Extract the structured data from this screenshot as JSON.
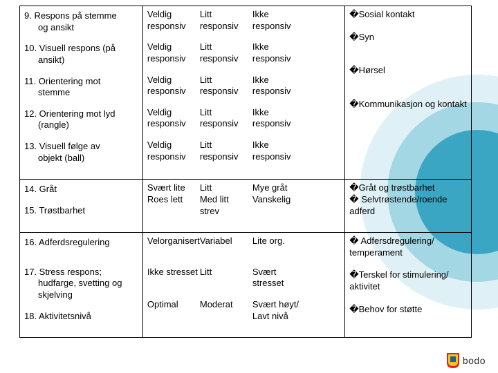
{
  "rows": [
    {
      "leftItems": [
        {
          "num": " 9.",
          "txt": "Respons på stemme",
          "indent": "og  ansikt"
        },
        {
          "num": "10.",
          "txt": "Visuell respons (på",
          "indent": " ansikt)"
        },
        {
          "num": "11.",
          "txt": "Orientering mot",
          "indent": "stemme"
        },
        {
          "num": "12.",
          "txt": "Orientering mot lyd",
          "indent": "(rangle)"
        },
        {
          "num": "13.",
          "txt": "Visuell følge av",
          "indent": "objekt (ball)"
        }
      ],
      "midGroups": [
        [
          [
            "Veldig",
            "Litt",
            "Ikke"
          ],
          [
            "responsiv",
            "responsiv",
            "responsiv"
          ]
        ],
        [
          [
            "Veldig",
            "Litt",
            "Ikke"
          ],
          [
            "responsiv",
            "responsiv",
            "responsiv"
          ]
        ],
        [
          [
            "Veldig",
            "Litt",
            "Ikke"
          ],
          [
            "responsiv",
            "responsiv",
            "responsiv"
          ]
        ],
        [
          [
            "Veldig",
            "Litt",
            "Ikke"
          ],
          [
            "responsiv",
            "responsiv",
            "responsiv"
          ]
        ],
        [
          [
            "Veldig",
            "Litt",
            "Ikke"
          ],
          [
            "responsiv",
            "responsiv",
            "responsiv"
          ]
        ]
      ],
      "rightItems": [
        {
          "pre": "�",
          "txt": "Sosial kontakt",
          "after": 1
        },
        {
          "pre": "�",
          "txt": "Syn",
          "after": 2
        },
        {
          "pre": "�",
          "txt": "Hørsel",
          "after": 2
        },
        {
          "pre": "�",
          "txt": "Kommunikasjon og          kontakt",
          "after": 0
        }
      ]
    },
    {
      "leftItems": [
        {
          "num": "14.",
          "txt": "Gråt",
          "indent": ""
        },
        {
          "num": "15.",
          "txt": "Trøstbarhet",
          "indent": ""
        }
      ],
      "midGroups": [
        [
          [
            "Svært lite",
            "Litt",
            "Mye gråt"
          ],
          [
            "Roes lett",
            "Med litt",
            "Vanskelig"
          ],
          [
            "",
            "strev",
            ""
          ]
        ]
      ],
      "rightItems": [
        {
          "pre": "�",
          "txt": "Gråt og trøstbarhet",
          "after": 0
        },
        {
          "pre": "�",
          "txt": " Selvtrøstende/roende          adferd",
          "after": 0
        }
      ]
    },
    {
      "leftItems": [
        {
          "num": "16.",
          "txt": "Adferdsregulering",
          "indent": "",
          "gap": 1
        },
        {
          "num": "17.",
          "txt": "Stress respons;",
          "indent": "hudfarge, svetting og skjelving"
        },
        {
          "num": "18.",
          "txt": "Aktivitetsnivå",
          "indent": ""
        }
      ],
      "midGroups": [
        [
          [
            "Velorganisert",
            "Variabel",
            "Lite org."
          ]
        ],
        [
          [
            "",
            "",
            ""
          ]
        ],
        [
          [
            "Ikke stresset",
            "Litt",
            "Svært stresset"
          ]
        ],
        [
          [
            "Optimal",
            "Moderat",
            "Svært høyt/"
          ],
          [
            "",
            "",
            "Lavt nivå"
          ]
        ]
      ],
      "rightItems": [
        {
          "pre": "�",
          "txt": " Adfersdregulering/       temperament",
          "after": 1
        },
        {
          "pre": "�",
          "txt": "Terskel for stimulering/       aktivitet",
          "after": 1
        },
        {
          "pre": "�",
          "txt": "Behov for støtte",
          "after": 0
        }
      ]
    }
  ],
  "logoText": "bodo",
  "colors": {
    "shieldRed": "#d8232a",
    "shieldYellow": "#f5c518",
    "shieldBlue": "#1e5aa8"
  }
}
